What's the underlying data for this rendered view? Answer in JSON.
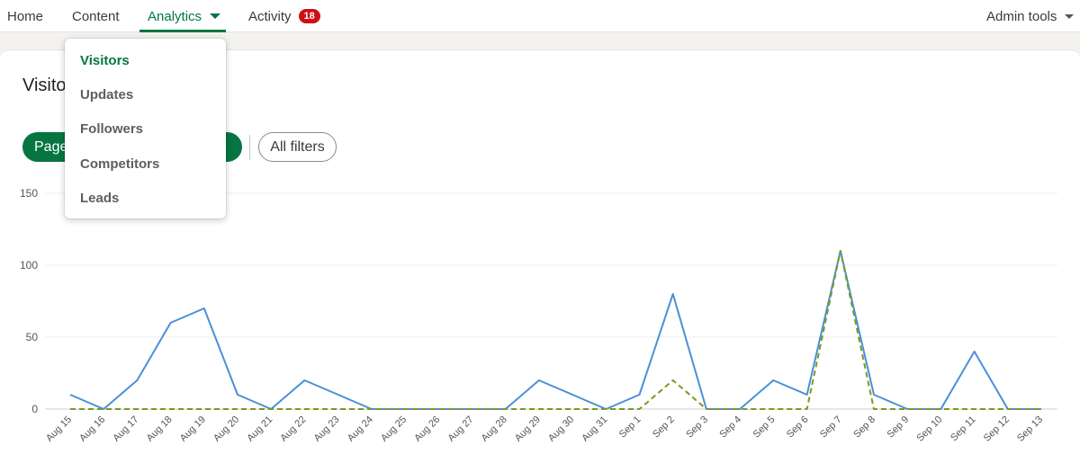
{
  "nav": {
    "items": [
      {
        "label": "Home"
      },
      {
        "label": "Content"
      },
      {
        "label": "Analytics"
      },
      {
        "label": "Activity"
      }
    ],
    "activity_badge": "18",
    "admin_tools": "Admin tools"
  },
  "page": {
    "title": "Visitors",
    "filter_pill": "Page",
    "all_filters": "All filters"
  },
  "dropdown": {
    "items": [
      {
        "label": "Visitors"
      },
      {
        "label": "Updates"
      },
      {
        "label": "Followers"
      },
      {
        "label": "Competitors"
      },
      {
        "label": "Leads"
      }
    ]
  },
  "colors": {
    "accent": "#057642",
    "series_primary": "#4a90d9",
    "series_secondary": "#7a9a1e",
    "badge": "#cc1016"
  },
  "chart_data": {
    "type": "line",
    "categories": [
      "Aug 15",
      "Aug 16",
      "Aug 17",
      "Aug 18",
      "Aug 19",
      "Aug 20",
      "Aug 21",
      "Aug 22",
      "Aug 23",
      "Aug 24",
      "Aug 25",
      "Aug 26",
      "Aug 27",
      "Aug 28",
      "Aug 29",
      "Aug 30",
      "Aug 31",
      "Sep 1",
      "Sep 2",
      "Sep 3",
      "Sep 4",
      "Sep 5",
      "Sep 6",
      "Sep 7",
      "Sep 8",
      "Sep 9",
      "Sep 10",
      "Sep 11",
      "Sep 12",
      "Sep 13"
    ],
    "series": [
      {
        "values": [
          10,
          0,
          20,
          60,
          70,
          10,
          0,
          20,
          10,
          0,
          0,
          0,
          0,
          0,
          20,
          10,
          0,
          10,
          80,
          0,
          0,
          20,
          10,
          110,
          10,
          0,
          0,
          40,
          0,
          0
        ],
        "color": "#4a90d9",
        "style": "solid"
      },
      {
        "values": [
          0,
          0,
          0,
          0,
          0,
          0,
          0,
          0,
          0,
          0,
          0,
          0,
          0,
          0,
          0,
          0,
          0,
          0,
          20,
          0,
          0,
          0,
          0,
          110,
          0,
          0,
          0,
          0,
          0,
          0
        ],
        "color": "#7a9a1e",
        "style": "dashed"
      }
    ],
    "yticks": [
      0,
      50,
      100,
      150
    ],
    "ylim": [
      0,
      150
    ],
    "grid": true
  }
}
